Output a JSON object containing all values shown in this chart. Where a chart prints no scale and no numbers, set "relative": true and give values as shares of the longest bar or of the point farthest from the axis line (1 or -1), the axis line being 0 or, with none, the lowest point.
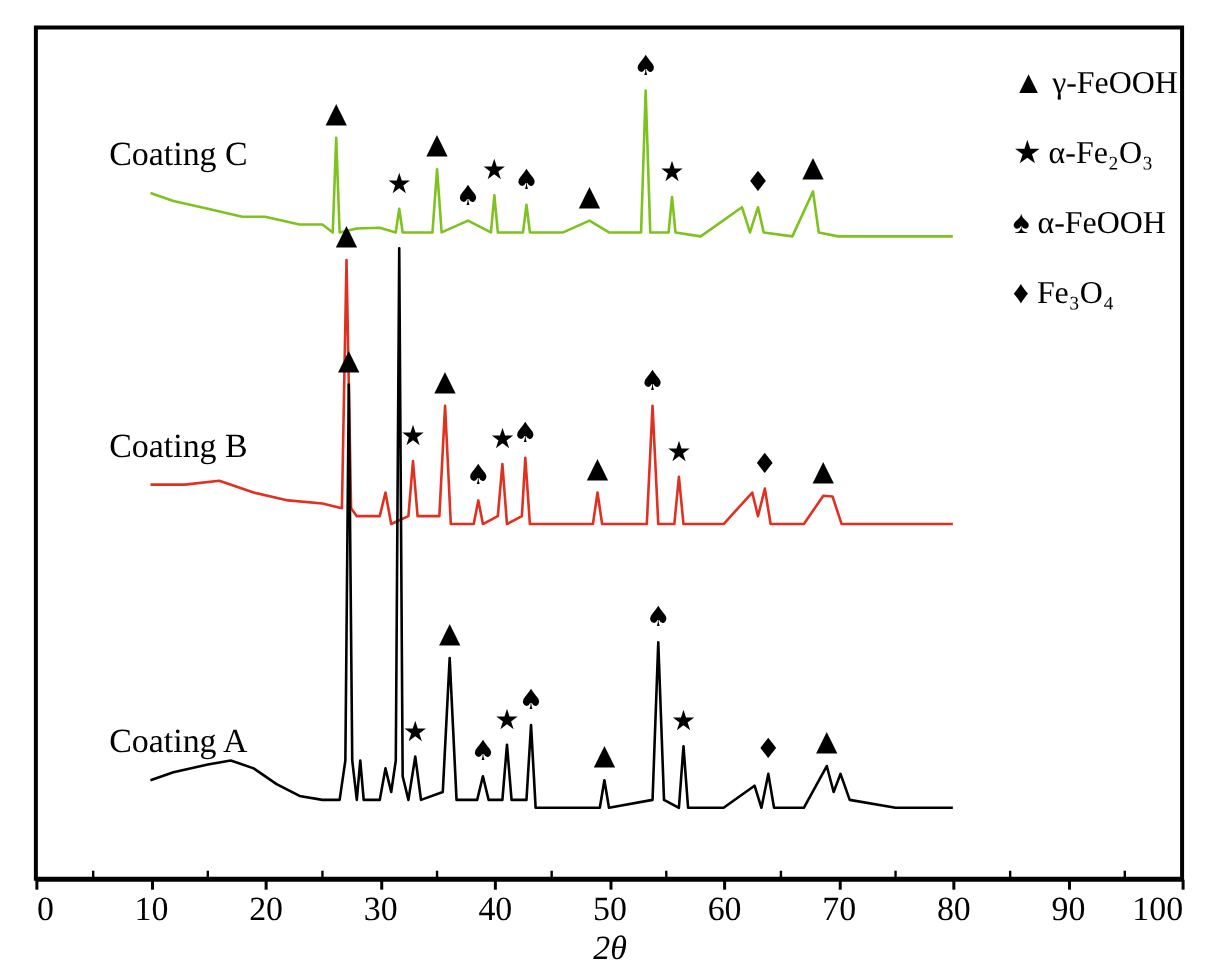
{
  "chart_data": {
    "type": "line",
    "relative": true,
    "xlabel": "2θ",
    "xlim": [
      0,
      100
    ],
    "xticks": [
      0,
      {
        "value": 5,
        "label": null
      },
      10,
      {
        "value": 15,
        "label": null
      },
      20,
      {
        "value": 25,
        "label": null
      },
      30,
      {
        "value": 35,
        "label": null
      },
      40,
      {
        "value": 45,
        "label": null
      },
      50,
      {
        "value": 55,
        "label": null
      },
      60,
      {
        "value": 65,
        "label": null
      },
      70,
      {
        "value": 75,
        "label": null
      },
      80,
      {
        "value": 85,
        "label": null
      },
      90,
      {
        "value": 95,
        "label": null
      },
      100
    ],
    "grid": false,
    "marker": "none",
    "line_style": "solid",
    "series": [
      {
        "name": "Coating A",
        "color": "#000000",
        "x": [
          10,
          12,
          15,
          17,
          19,
          21,
          23,
          25,
          26.5,
          27.0,
          27.3,
          27.6,
          28.0,
          28.3,
          28.6,
          30,
          30.5,
          31,
          31.4,
          31.7,
          32.0,
          32.5,
          33.1,
          33.6,
          35.5,
          36.1,
          36.7,
          38.5,
          39.0,
          39.5,
          40.7,
          41.1,
          41.5,
          42.8,
          43.2,
          43.6,
          46,
          49.2,
          49.6,
          50.0,
          53.8,
          54.3,
          54.8,
          56.1,
          56.5,
          56.9,
          60,
          62.7,
          63.3,
          63.9,
          64.4,
          67,
          69.0,
          69.6,
          70.2,
          71,
          75,
          80
        ],
        "values": [
          0.125,
          0.135,
          0.145,
          0.15,
          0.14,
          0.12,
          0.105,
          0.1,
          0.1,
          0.15,
          0.627,
          0.15,
          0.1,
          0.15,
          0.1,
          0.1,
          0.14,
          0.11,
          0.15,
          0.8,
          0.13,
          0.1,
          0.155,
          0.1,
          0.11,
          0.28,
          0.1,
          0.1,
          0.13,
          0.1,
          0.1,
          0.17,
          0.1,
          0.1,
          0.195,
          0.09,
          0.09,
          0.09,
          0.125,
          0.09,
          0.1,
          0.3,
          0.1,
          0.09,
          0.168,
          0.09,
          0.09,
          0.118,
          0.09,
          0.133,
          0.09,
          0.09,
          0.143,
          0.11,
          0.133,
          0.1,
          0.09,
          0.09
        ]
      },
      {
        "name": "Coating B",
        "color": "#e03020",
        "x": [
          10,
          13,
          16,
          19,
          22,
          25,
          26.7,
          27.1,
          27.5,
          28,
          30,
          30.5,
          31,
          32.5,
          32.9,
          33.3,
          35.2,
          35.7,
          36.2,
          38.2,
          38.6,
          39.0,
          40.3,
          40.7,
          41.1,
          42.4,
          42.7,
          43.1,
          46,
          48.6,
          49.0,
          49.4,
          53.3,
          53.8,
          54.3,
          55.7,
          56.1,
          56.5,
          60,
          62.5,
          63.0,
          63.6,
          64.1,
          67,
          68.7,
          69.5,
          70.3,
          75,
          80
        ],
        "values": [
          0.5,
          0.5,
          0.505,
          0.49,
          0.48,
          0.476,
          0.47,
          0.785,
          0.47,
          0.46,
          0.46,
          0.49,
          0.45,
          0.46,
          0.53,
          0.46,
          0.46,
          0.6,
          0.45,
          0.45,
          0.48,
          0.45,
          0.46,
          0.526,
          0.45,
          0.46,
          0.534,
          0.45,
          0.45,
          0.45,
          0.49,
          0.45,
          0.45,
          0.6,
          0.45,
          0.45,
          0.51,
          0.45,
          0.45,
          0.49,
          0.46,
          0.495,
          0.45,
          0.45,
          0.486,
          0.485,
          0.45,
          0.45,
          0.45
        ]
      },
      {
        "name": "Coating C",
        "color": "#7dc21e",
        "x": [
          10,
          12,
          15,
          18,
          20,
          23,
          25,
          25.9,
          26.2,
          26.5,
          28,
          30,
          31.4,
          31.7,
          32.0,
          34.6,
          35.0,
          35.4,
          37.7,
          39.7,
          40.0,
          40.3,
          42.5,
          42.8,
          43.1,
          46,
          48.3,
          50,
          52.8,
          53.2,
          53.6,
          55.2,
          55.5,
          55.8,
          58,
          61.6,
          62.3,
          63.0,
          63.5,
          66,
          67.8,
          68.3,
          70,
          75,
          80
        ],
        "values": [
          0.87,
          0.86,
          0.85,
          0.84,
          0.84,
          0.83,
          0.83,
          0.82,
          0.94,
          0.82,
          0.825,
          0.826,
          0.82,
          0.85,
          0.82,
          0.82,
          0.9,
          0.82,
          0.835,
          0.82,
          0.867,
          0.82,
          0.82,
          0.855,
          0.82,
          0.82,
          0.835,
          0.82,
          0.82,
          1.0,
          0.82,
          0.82,
          0.865,
          0.82,
          0.815,
          0.852,
          0.82,
          0.852,
          0.82,
          0.815,
          0.872,
          0.82,
          0.815,
          0.815,
          0.815
        ]
      }
    ],
    "annotations": [
      "▲ γ-FeOOH",
      "★ α-Fe₂O₃",
      "♠ α-FeOOH",
      "♦ Fe₃O₄",
      {
        "text": "▲",
        "x": 26.2,
        "y": 0.94
      },
      {
        "text": "★",
        "x": 31.7,
        "y": 0.85
      },
      {
        "text": "▲",
        "x": 35.0,
        "y": 0.9
      },
      {
        "text": "♠",
        "x": 37.7,
        "y": 0.835
      },
      {
        "text": "★",
        "x": 40.0,
        "y": 0.867
      },
      {
        "text": "♠",
        "x": 42.8,
        "y": 0.855
      },
      {
        "text": "▲",
        "x": 48.3,
        "y": 0.835
      },
      {
        "text": "♠",
        "x": 53.2,
        "y": 1.0
      },
      {
        "text": "★",
        "x": 55.5,
        "y": 0.865
      },
      {
        "text": "♦",
        "x": 63.0,
        "y": 0.852
      },
      {
        "text": "▲",
        "x": 67.8,
        "y": 0.872
      },
      {
        "text": "▲",
        "x": 27.1,
        "y": 0.785
      },
      {
        "text": "▲",
        "x": 35.7,
        "y": 0.6
      },
      {
        "text": "★",
        "x": 32.9,
        "y": 0.53
      },
      {
        "text": "♠",
        "x": 38.6,
        "y": 0.48
      },
      {
        "text": "★",
        "x": 40.7,
        "y": 0.526
      },
      {
        "text": "♠",
        "x": 42.7,
        "y": 0.534
      },
      {
        "text": "▲",
        "x": 49.0,
        "y": 0.49
      },
      {
        "text": "♠",
        "x": 53.8,
        "y": 0.6
      },
      {
        "text": "★",
        "x": 56.1,
        "y": 0.51
      },
      {
        "text": "♦",
        "x": 63.6,
        "y": 0.495
      },
      {
        "text": "▲",
        "x": 68.7,
        "y": 0.486
      },
      {
        "text": "▲",
        "x": 27.3,
        "y": 0.627
      },
      {
        "text": "▲",
        "x": 36.1,
        "y": 0.28
      },
      {
        "text": "★",
        "x": 33.1,
        "y": 0.155
      },
      {
        "text": "♠",
        "x": 39.0,
        "y": 0.13
      },
      {
        "text": "★",
        "x": 41.1,
        "y": 0.17
      },
      {
        "text": "♠",
        "x": 43.2,
        "y": 0.195
      },
      {
        "text": "▲",
        "x": 49.6,
        "y": 0.125
      },
      {
        "text": "♠",
        "x": 54.3,
        "y": 0.3
      },
      {
        "text": "★",
        "x": 56.5,
        "y": 0.168
      },
      {
        "text": "♦",
        "x": 63.9,
        "y": 0.133
      },
      {
        "text": "▲",
        "x": 69.0,
        "y": 0.143
      }
    ]
  }
}
